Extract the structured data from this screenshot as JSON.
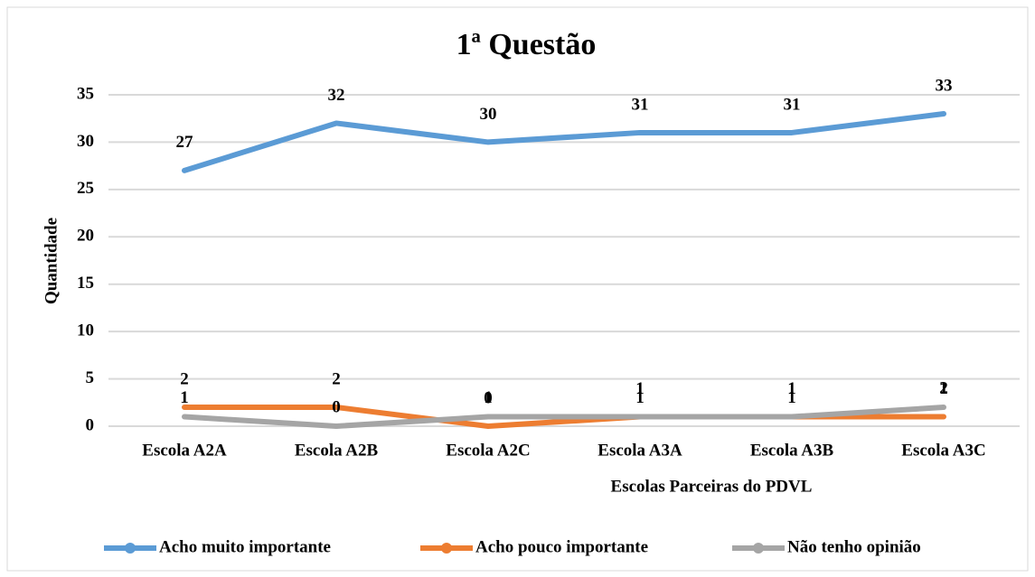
{
  "chart_data": {
    "type": "line",
    "title": "1ª Questão",
    "x_label": "Escolas Parceiras do PDVL",
    "y_label": "Quantidade",
    "categories": [
      "Escola A2A",
      "Escola A2B",
      "Escola A2C",
      "Escola A3A",
      "Escola A3B",
      "Escola A3C"
    ],
    "series": [
      {
        "name": "Acho muito importante",
        "color": "#5b9bd5",
        "values": [
          27,
          32,
          30,
          31,
          31,
          33
        ]
      },
      {
        "name": "Acho pouco importante",
        "color": "#ed7d31",
        "values": [
          2,
          2,
          0,
          1,
          1,
          1
        ]
      },
      {
        "name": "Não tenho opinião",
        "color": "#a5a5a5",
        "values": [
          1,
          0,
          1,
          1,
          1,
          2
        ]
      }
    ],
    "ylim": [
      0,
      35
    ],
    "yticks": [
      0,
      5,
      10,
      15,
      20,
      25,
      30,
      35
    ],
    "grid": true,
    "legend": "bottom",
    "data_labels": true
  }
}
